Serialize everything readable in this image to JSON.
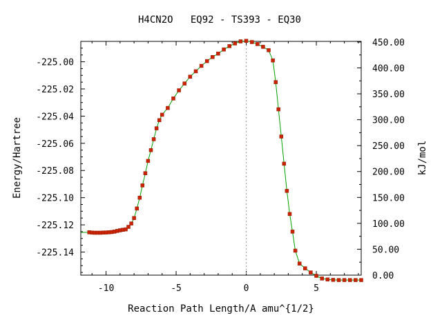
{
  "chart_data": {
    "type": "line",
    "title": "H4CN2O   EQ92 - TS393 - EQ30",
    "xlabel": "Reaction Path Length/A amu^{1/2}",
    "ylabel": "Energy/Hartree",
    "y2label": "kJ/mol",
    "xlim": [
      -11.8,
      8.2
    ],
    "ylim": [
      -225.157,
      -224.985
    ],
    "y2lim": [
      0,
      451.2
    ],
    "x_ticks": [
      -10,
      -5,
      0,
      5
    ],
    "x_tick_labels": [
      "-10",
      "-5",
      "0",
      "5"
    ],
    "y_ticks": [
      -225.0,
      -225.02,
      -225.04,
      -225.06,
      -225.08,
      -225.1,
      -225.12,
      -225.14
    ],
    "y_tick_labels": [
      "-225.00",
      "-225.02",
      "-225.04",
      "-225.06",
      "-225.08",
      "-225.10",
      "-225.12",
      "-225.14"
    ],
    "y2_ticks": [
      0,
      50,
      100,
      150,
      200,
      250,
      300,
      350,
      400,
      450
    ],
    "y2_tick_labels": [
      "0.00",
      "50.00",
      "100.00",
      "150.00",
      "200.00",
      "250.00",
      "300.00",
      "350.00",
      "400.00",
      "450.00"
    ],
    "ts_marker_x": 0,
    "grid": false,
    "line_color": "#00a000",
    "marker_color": "#cc2200",
    "series": [
      {
        "x": [
          -11.2,
          -11.0,
          -10.8,
          -10.6,
          -10.4,
          -10.2,
          -10.0,
          -9.8,
          -9.6,
          -9.4,
          -9.2,
          -9.0,
          -8.8,
          -8.6,
          -8.4,
          -8.2,
          -8.0,
          -7.8,
          -7.6,
          -7.4,
          -7.2,
          -7.0,
          -6.8,
          -6.6,
          -6.4,
          -6.2,
          -6.0,
          -5.6,
          -5.2,
          -4.8,
          -4.4,
          -4.0,
          -3.6,
          -3.2,
          -2.8,
          -2.4,
          -2.0,
          -1.6,
          -1.2,
          -0.8,
          -0.4,
          0.0,
          0.4,
          0.8,
          1.2,
          1.6,
          1.9,
          2.1,
          2.3,
          2.5,
          2.7,
          2.9,
          3.1,
          3.3,
          3.5,
          3.8,
          4.2,
          4.6,
          5.0,
          5.4,
          5.8,
          6.2,
          6.6,
          7.0,
          7.4,
          7.8,
          8.2
        ],
        "y": [
          -225.1255,
          -225.1257,
          -225.1258,
          -225.1258,
          -225.1258,
          -225.1257,
          -225.1256,
          -225.1255,
          -225.1253,
          -225.125,
          -225.1245,
          -225.124,
          -225.1236,
          -225.1233,
          -225.1215,
          -225.119,
          -225.115,
          -225.108,
          -225.1,
          -225.091,
          -225.082,
          -225.073,
          -225.065,
          -225.057,
          -225.049,
          -225.043,
          -225.039,
          -225.034,
          -225.027,
          -225.021,
          -225.016,
          -225.011,
          -225.007,
          -225.003,
          -224.9995,
          -224.9965,
          -224.994,
          -224.991,
          -224.9885,
          -224.9865,
          -224.985,
          -224.9846,
          -224.9855,
          -224.987,
          -224.989,
          -224.9915,
          -224.999,
          -225.015,
          -225.035,
          -225.055,
          -225.075,
          -225.095,
          -225.112,
          -225.125,
          -225.139,
          -225.1485,
          -225.152,
          -225.155,
          -225.1575,
          -225.1595,
          -225.1602,
          -225.1605,
          -225.1606,
          -225.1606,
          -225.1606,
          -225.1606,
          -225.1606
        ]
      }
    ]
  }
}
